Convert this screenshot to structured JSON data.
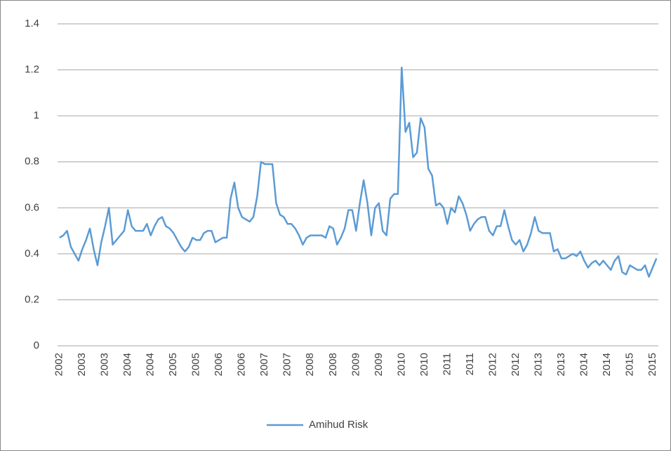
{
  "chart_data": {
    "type": "line",
    "categories": [
      "2002",
      null,
      null,
      null,
      null,
      null,
      "2003",
      null,
      null,
      null,
      null,
      null,
      "2003",
      null,
      null,
      null,
      null,
      null,
      "2004",
      null,
      null,
      null,
      null,
      null,
      "2004",
      null,
      null,
      null,
      null,
      null,
      "2005",
      null,
      null,
      null,
      null,
      null,
      "2005",
      null,
      null,
      null,
      null,
      null,
      "2006",
      null,
      null,
      null,
      null,
      null,
      "2006",
      null,
      null,
      null,
      null,
      null,
      "2007",
      null,
      null,
      null,
      null,
      null,
      "2007",
      null,
      null,
      null,
      null,
      null,
      "2008",
      null,
      null,
      null,
      null,
      null,
      "2008",
      null,
      null,
      null,
      null,
      null,
      "2009",
      null,
      null,
      null,
      null,
      null,
      "2009",
      null,
      null,
      null,
      null,
      null,
      "2010",
      null,
      null,
      null,
      null,
      null,
      "2010",
      null,
      null,
      null,
      null,
      null,
      "2011",
      null,
      null,
      null,
      null,
      null,
      "2011",
      null,
      null,
      null,
      null,
      null,
      "2012",
      null,
      null,
      null,
      null,
      null,
      "2012",
      null,
      null,
      null,
      null,
      null,
      "2013",
      null,
      null,
      null,
      null,
      null,
      "2013",
      null,
      null,
      null,
      null,
      null,
      "2014",
      null,
      null,
      null,
      null,
      null,
      "2014",
      null,
      null,
      null,
      null,
      null,
      "2015",
      null,
      null,
      null,
      null,
      null,
      "2015",
      null
    ],
    "series": [
      {
        "name": "Amihud Risk",
        "color": "#5b9bd5",
        "values": [
          0.47,
          0.48,
          0.5,
          0.43,
          0.4,
          0.37,
          0.42,
          0.46,
          0.51,
          0.42,
          0.35,
          0.45,
          0.52,
          0.6,
          0.44,
          0.46,
          0.48,
          0.5,
          0.59,
          0.52,
          0.5,
          0.5,
          0.5,
          0.53,
          0.48,
          0.52,
          0.55,
          0.56,
          0.52,
          0.51,
          0.49,
          0.46,
          0.43,
          0.41,
          0.43,
          0.47,
          0.46,
          0.46,
          0.49,
          0.5,
          0.5,
          0.45,
          0.46,
          0.47,
          0.47,
          0.64,
          0.71,
          0.6,
          0.56,
          0.55,
          0.54,
          0.56,
          0.65,
          0.8,
          0.79,
          0.79,
          0.79,
          0.62,
          0.57,
          0.56,
          0.53,
          0.53,
          0.51,
          0.48,
          0.44,
          0.47,
          0.48,
          0.48,
          0.48,
          0.48,
          0.47,
          0.52,
          0.51,
          0.44,
          0.47,
          0.51,
          0.59,
          0.59,
          0.5,
          0.62,
          0.72,
          0.62,
          0.48,
          0.6,
          0.62,
          0.5,
          0.48,
          0.64,
          0.66,
          0.66,
          1.21,
          0.93,
          0.97,
          0.82,
          0.84,
          0.99,
          0.95,
          0.77,
          0.74,
          0.61,
          0.62,
          0.6,
          0.53,
          0.6,
          0.58,
          0.65,
          0.62,
          0.57,
          0.5,
          0.53,
          0.55,
          0.56,
          0.56,
          0.5,
          0.48,
          0.52,
          0.52,
          0.59,
          0.52,
          0.46,
          0.44,
          0.46,
          0.41,
          0.44,
          0.49,
          0.56,
          0.5,
          0.49,
          0.49,
          0.49,
          0.41,
          0.42,
          0.38,
          0.38,
          0.39,
          0.4,
          0.39,
          0.41,
          0.37,
          0.34,
          0.36,
          0.37,
          0.35,
          0.37,
          0.35,
          0.33,
          0.37,
          0.39,
          0.32,
          0.31,
          0.35,
          0.34,
          0.33,
          0.33,
          0.35,
          0.3,
          0.34,
          0.38
        ]
      }
    ],
    "ylim": [
      0,
      1.4
    ],
    "yticks": [
      0,
      0.2,
      0.4,
      0.6,
      0.8,
      1,
      1.2,
      1.4
    ],
    "grid": true,
    "legend": "bottom"
  }
}
